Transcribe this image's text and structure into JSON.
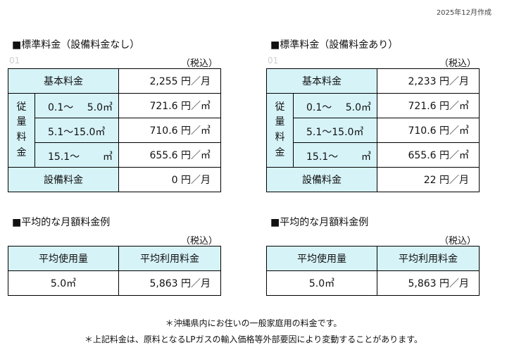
{
  "created_date": "2025年12月作成",
  "panels": [
    {
      "rate_title": "■標準料金（設備料金なし）",
      "ghost_number": "01",
      "tax_label": "（税込）",
      "basic_label": "基本料金",
      "basic_value": "2,255 円／月",
      "usage_label": [
        "従",
        "量",
        "料",
        "金"
      ],
      "tiers": [
        {
          "from": "0.1～",
          "to": "5.0㎥",
          "price": "721.6 円／㎥"
        },
        {
          "from": "5.1～15.0㎥",
          "to": "",
          "price": "710.6 円／㎥"
        },
        {
          "from": "15.1～",
          "to": "㎥",
          "price": "655.6 円／㎥"
        }
      ],
      "equip_label": "設備料金",
      "equip_value": "0 円／月",
      "avg_title": "■平均的な月額料金例",
      "avg_tax_label": "（税込）",
      "avg_headers": [
        "平均使用量",
        "平均利用料金"
      ],
      "avg_values": [
        "5.0㎥",
        "5,863 円／月"
      ]
    },
    {
      "rate_title": "■標準料金（設備料金あり）",
      "ghost_number": "01",
      "tax_label": "（税込）",
      "basic_label": "基本料金",
      "basic_value": "2,233 円／月",
      "usage_label": [
        "従",
        "量",
        "料",
        "金"
      ],
      "tiers": [
        {
          "from": "0.1～",
          "to": "5.0㎥",
          "price": "721.6 円／㎥"
        },
        {
          "from": "5.1～15.0㎥",
          "to": "",
          "price": "710.6 円／㎥"
        },
        {
          "from": "15.1～",
          "to": "㎥",
          "price": "655.6 円／㎥"
        }
      ],
      "equip_label": "設備料金",
      "equip_value": "22 円／月",
      "avg_title": "■平均的な月額料金例",
      "avg_tax_label": "（税込）",
      "avg_headers": [
        "平均使用量",
        "平均利用料金"
      ],
      "avg_values": [
        "5.0㎥",
        "5,863 円／月"
      ]
    }
  ],
  "footnotes": [
    "＊沖縄県内にお住いの一般家庭用の料金です。",
    "＊上記料金は、原料となるLPガスの輸入価格等外部要因により変動することがあります。"
  ],
  "colors": {
    "header_fill": "#d6f3f8",
    "border": "#000000"
  }
}
